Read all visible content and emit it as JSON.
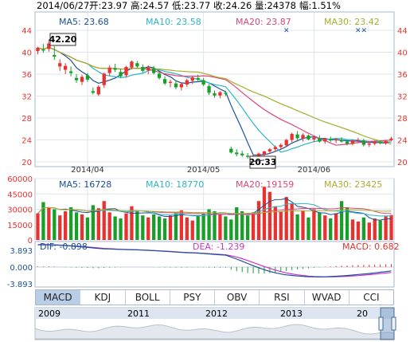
{
  "header": {
    "date": "2014/06/27",
    "open": "开:23.97",
    "high": "高:24.57",
    "low": "低:23.77",
    "close": "收:24.26",
    "volume": "量:24378",
    "change": "幅:1.51%"
  },
  "ma": {
    "ma5": "MA5: 23.68",
    "ma10": "MA10: 23.58",
    "ma20": "MA20: 23.87",
    "ma30": "MA30: 23.42"
  },
  "vol_ma": {
    "ma5": "MA5: 16728",
    "ma10": "MA10: 18770",
    "ma20": "MA20: 19159",
    "ma30": "MA30: 23425"
  },
  "macd": {
    "dif": "DIF: -0.898",
    "dea": "DEA: -1.239",
    "macd": "MACD: 0.682"
  },
  "colors": {
    "up": "#e8322f",
    "down": "#1a9e2a",
    "ma5": "#1b4f9c",
    "ma10": "#2bb5c8",
    "ma20": "#e0457a",
    "ma30": "#a5b02c",
    "dif": "#1b4f9c",
    "dea": "#cc33cc",
    "axis_red": "#e8322f",
    "axis_blue": "#1b4f9c"
  },
  "tabs": [
    "MACD",
    "KDJ",
    "BOLL",
    "PSY",
    "OBV",
    "RSI",
    "WVAD",
    "CCI"
  ],
  "active_tab": 0,
  "navigator": {
    "years": [
      "2009",
      "2011",
      "2012",
      "2013",
      "20"
    ]
  },
  "chart_data": [
    {
      "type": "candlestick",
      "y_ticks": [
        "44",
        "40",
        "36",
        "32",
        "28",
        "24",
        "20"
      ],
      "ylim": [
        20,
        44
      ],
      "x_labels": [
        "2014/04",
        "2014/05",
        "2014/06"
      ],
      "x_label_index": [
        9,
        30,
        50
      ],
      "annotations": {
        "max": "42.20",
        "min": "20.33"
      },
      "max_index": 2,
      "min_index": 41,
      "ohlc": [
        [
          40.2,
          41.0,
          39.6,
          40.8
        ],
        [
          40.5,
          41.5,
          39.9,
          40.3
        ],
        [
          40.6,
          42.2,
          40.1,
          41.6
        ],
        [
          39.5,
          41.1,
          38.6,
          39.2
        ],
        [
          37.4,
          38.7,
          36.6,
          38.0
        ],
        [
          36.8,
          38.0,
          36.0,
          37.5
        ],
        [
          36.5,
          37.4,
          35.6,
          36.2
        ],
        [
          35.3,
          36.0,
          34.4,
          34.9
        ],
        [
          34.6,
          35.9,
          34.0,
          35.5
        ],
        [
          35.8,
          36.2,
          34.6,
          35.0
        ],
        [
          32.9,
          33.6,
          32.3,
          32.6
        ],
        [
          32.3,
          34.0,
          32.0,
          33.7
        ],
        [
          34.0,
          36.3,
          33.5,
          36.1
        ],
        [
          36.2,
          37.6,
          35.7,
          37.2
        ],
        [
          37.1,
          37.9,
          36.4,
          36.8
        ],
        [
          36.4,
          37.0,
          35.3,
          35.6
        ],
        [
          35.8,
          37.5,
          35.4,
          37.3
        ],
        [
          37.2,
          38.5,
          36.9,
          38.3
        ],
        [
          38.0,
          38.4,
          37.1,
          37.4
        ],
        [
          37.3,
          37.8,
          36.3,
          36.6
        ],
        [
          36.7,
          37.6,
          36.0,
          37.2
        ],
        [
          37.0,
          37.5,
          35.9,
          36.2
        ],
        [
          36.1,
          36.5,
          35.0,
          35.3
        ],
        [
          35.1,
          35.6,
          34.0,
          34.3
        ],
        [
          34.4,
          35.0,
          33.6,
          34.6
        ],
        [
          34.3,
          34.9,
          33.2,
          33.6
        ],
        [
          33.6,
          34.5,
          33.0,
          34.2
        ],
        [
          34.1,
          35.2,
          33.7,
          34.9
        ],
        [
          34.8,
          35.7,
          34.2,
          35.4
        ],
        [
          35.3,
          35.9,
          34.6,
          35.0
        ],
        [
          34.9,
          35.3,
          33.8,
          34.1
        ],
        [
          33.8,
          34.2,
          32.2,
          32.6
        ],
        [
          32.5,
          33.0,
          31.7,
          32.1
        ],
        [
          32.1,
          32.9,
          31.6,
          32.7
        ],
        [
          32.6,
          33.0,
          32.0,
          32.4
        ],
        [
          22.4,
          22.8,
          21.5,
          21.7
        ],
        [
          21.7,
          22.3,
          21.0,
          21.4
        ],
        [
          21.5,
          22.0,
          20.9,
          21.2
        ],
        [
          21.1,
          21.6,
          20.6,
          20.9
        ],
        [
          20.9,
          21.4,
          20.5,
          21.1
        ],
        [
          21.0,
          21.7,
          20.6,
          21.5
        ],
        [
          21.4,
          22.0,
          20.33,
          21.9
        ],
        [
          21.9,
          22.5,
          21.5,
          22.3
        ],
        [
          22.3,
          23.0,
          21.9,
          22.7
        ],
        [
          22.7,
          23.4,
          22.3,
          23.1
        ],
        [
          23.0,
          24.2,
          22.8,
          24.0
        ],
        [
          24.0,
          25.3,
          23.6,
          25.1
        ],
        [
          25.0,
          25.6,
          24.0,
          24.3
        ],
        [
          24.3,
          25.2,
          23.7,
          24.9
        ],
        [
          24.8,
          25.0,
          23.9,
          24.1
        ],
        [
          24.1,
          24.7,
          23.6,
          24.4
        ],
        [
          24.3,
          24.8,
          23.5,
          23.7
        ],
        [
          23.7,
          24.4,
          23.3,
          24.2
        ],
        [
          24.1,
          24.6,
          23.6,
          23.9
        ],
        [
          23.9,
          24.3,
          23.4,
          24.1
        ],
        [
          24.0,
          24.5,
          23.5,
          23.7
        ],
        [
          23.7,
          24.0,
          23.0,
          23.3
        ],
        [
          23.3,
          24.1,
          23.0,
          23.9
        ],
        [
          23.9,
          24.4,
          23.5,
          24.0
        ],
        [
          23.9,
          24.2,
          22.8,
          23.1
        ],
        [
          23.1,
          23.6,
          22.7,
          23.3
        ],
        [
          23.3,
          23.9,
          23.0,
          23.6
        ],
        [
          23.6,
          23.9,
          23.2,
          23.4
        ],
        [
          23.4,
          24.0,
          23.1,
          23.8
        ],
        [
          23.97,
          24.57,
          23.77,
          24.26
        ]
      ]
    },
    {
      "type": "bar",
      "name": "volume",
      "y_ticks": [
        "60000",
        "45000",
        "30000",
        "15000",
        "0"
      ],
      "ylim": [
        0,
        60000
      ],
      "values": [
        26000,
        37000,
        32000,
        30000,
        24000,
        28000,
        32000,
        27000,
        25000,
        22000,
        34000,
        31000,
        38000,
        27000,
        23000,
        21000,
        26000,
        33000,
        28000,
        24000,
        22000,
        25000,
        23000,
        21000,
        24000,
        26000,
        29000,
        22000,
        19000,
        24000,
        26000,
        30000,
        28000,
        25000,
        23000,
        20000,
        32000,
        28000,
        24000,
        27000,
        38000,
        52000,
        47000,
        33000,
        28000,
        42000,
        36000,
        25000,
        29000,
        22000,
        30000,
        27000,
        24000,
        21000,
        26000,
        38000,
        32000,
        20000,
        18000,
        22000,
        17000,
        21000,
        19000,
        23000,
        24378
      ]
    },
    {
      "type": "bar",
      "name": "MACD",
      "y_ticks": [
        "3.893",
        "0.000",
        "-3.893"
      ],
      "ylim": [
        -3.893,
        3.893
      ],
      "values": [
        0.15,
        0.12,
        0.16,
        0.09,
        0.02,
        -0.05,
        -0.09,
        -0.14,
        -0.17,
        -0.19,
        -0.25,
        -0.27,
        -0.2,
        -0.13,
        -0.08,
        -0.05,
        -0.02,
        0.02,
        0.01,
        -0.02,
        -0.03,
        -0.05,
        -0.07,
        -0.1,
        -0.11,
        -0.13,
        -0.13,
        -0.1,
        -0.07,
        -0.06,
        -0.08,
        -0.13,
        -0.16,
        -0.16,
        -0.15,
        -0.6,
        -0.95,
        -1.2,
        -1.38,
        -1.48,
        -1.52,
        -1.48,
        -1.38,
        -1.25,
        -1.1,
        -0.92,
        -0.7,
        -0.55,
        -0.42,
        -0.3,
        -0.18,
        -0.08,
        0.05,
        0.15,
        0.25,
        0.32,
        0.38,
        0.45,
        0.5,
        0.52,
        0.55,
        0.58,
        0.62,
        0.65,
        0.682
      ],
      "dif_end": -0.898,
      "dea_end": -1.239
    }
  ]
}
